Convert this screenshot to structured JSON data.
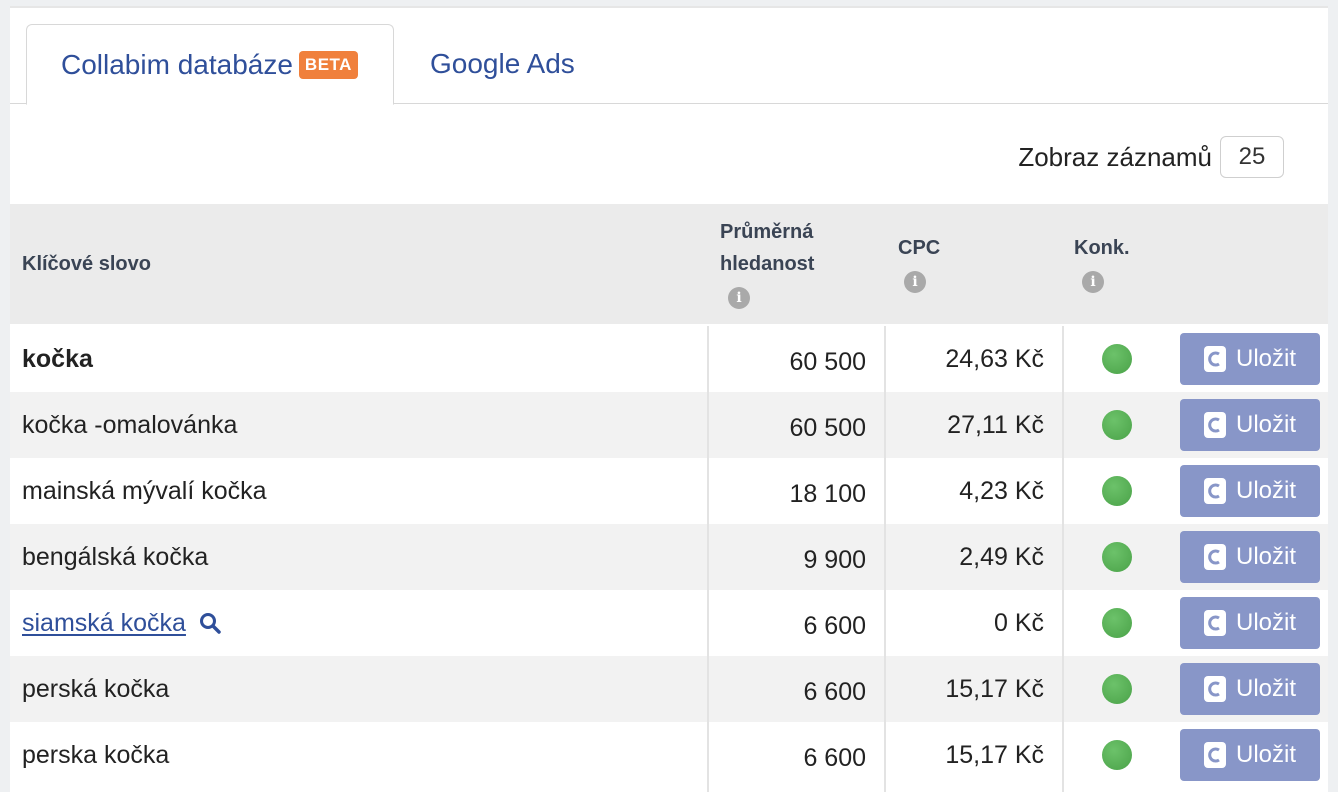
{
  "tabs": [
    {
      "label": "Collabim databáze",
      "badge": "BETA",
      "active": true
    },
    {
      "label": "Google Ads",
      "active": false
    }
  ],
  "per_page": {
    "label": "Zobraz záznamů",
    "value": "25"
  },
  "table": {
    "headers": {
      "keyword": "Klíčové slovo",
      "search_line1": "Průměrná",
      "search_line2": "hledanost",
      "cpc": "CPC",
      "konk": "Konk.",
      "info": "i"
    },
    "rows": [
      {
        "keyword": "kočka",
        "search": "60 500",
        "cpc": "24,63 Kč",
        "save": "Uložit",
        "bold": true
      },
      {
        "keyword": "kočka -omalovánka",
        "search": "60 500",
        "cpc": "27,11 Kč",
        "save": "Uložit"
      },
      {
        "keyword": "mainská mývalí kočka",
        "search": "18 100",
        "cpc": "4,23 Kč",
        "save": "Uložit"
      },
      {
        "keyword": "bengálská kočka",
        "search": "9 900",
        "cpc": "2,49 Kč",
        "save": "Uložit"
      },
      {
        "keyword": "siamská kočka",
        "search": "6 600",
        "cpc": "0 Kč",
        "save": "Uložit",
        "link": true
      },
      {
        "keyword": "perská kočka",
        "search": "6 600",
        "cpc": "15,17 Kč",
        "save": "Uložit"
      },
      {
        "keyword": "perska kočka",
        "search": "6 600",
        "cpc": "15,17 Kč",
        "save": "Uložit"
      }
    ]
  },
  "colors": {
    "accent": "#2f4f9a",
    "badge": "#f0803c",
    "button": "#8896c8",
    "competition_dot": "#55b054"
  },
  "icons": {
    "search": "search-icon",
    "info": "info-icon",
    "logo": "collabim-logo-icon"
  }
}
